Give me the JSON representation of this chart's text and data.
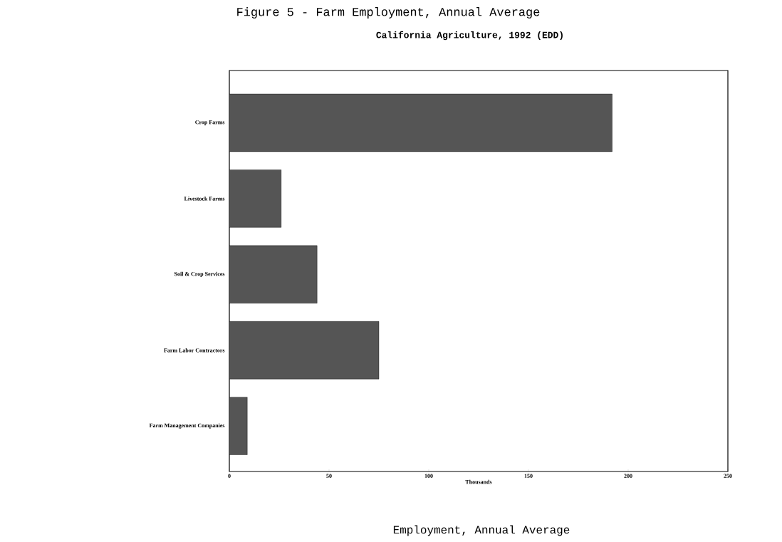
{
  "chart_data": {
    "type": "bar",
    "orientation": "horizontal",
    "title": "Figure 5 - Farm Employment, Annual Average",
    "subtitle": "California Agriculture, 1992 (EDD)",
    "xlabel": "Thousands",
    "annotations": [
      "Employment, Annual Average"
    ],
    "categories": [
      "Crop Farms",
      "Livestock Farms",
      "Soil & Crop Services",
      "Farm Labor Contractors",
      "Farm Management Companies"
    ],
    "values": [
      192,
      26,
      44,
      75,
      9
    ],
    "color": "#555555",
    "xlim": [
      0,
      250
    ],
    "xticks": [
      0,
      50,
      100,
      150,
      200,
      250
    ]
  }
}
